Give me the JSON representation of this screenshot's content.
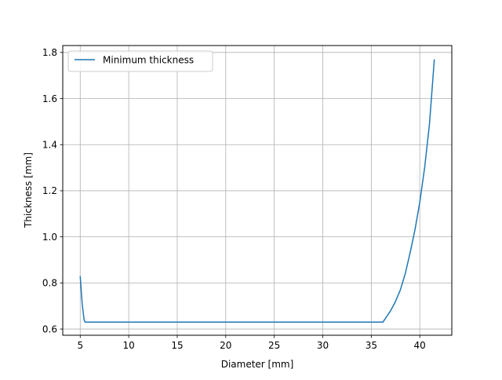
{
  "chart_data": {
    "type": "line",
    "title": "",
    "xlabel": "Diameter [mm]",
    "ylabel": "Thickness [mm]",
    "xlim": [
      3.2,
      43.3
    ],
    "ylim": [
      0.573,
      1.83
    ],
    "xticks": [
      5,
      10,
      15,
      20,
      25,
      30,
      35,
      40
    ],
    "yticks": [
      0.6,
      0.8,
      1.0,
      1.2,
      1.4,
      1.6,
      1.8
    ],
    "ytick_labels": [
      "0.6",
      "0.8",
      "1.0",
      "1.2",
      "1.4",
      "1.6",
      "1.8"
    ],
    "grid": true,
    "legend_position": "top-left",
    "series": [
      {
        "name": "Minimum thickness",
        "color": "#1f77b4",
        "x": [
          5.0,
          5.2,
          5.4,
          5.5,
          10,
          20,
          30,
          36.2,
          37.0,
          37.5,
          38.0,
          38.5,
          39.0,
          39.5,
          40.0,
          40.5,
          41.0,
          41.5
        ],
        "y": [
          0.83,
          0.71,
          0.64,
          0.63,
          0.63,
          0.63,
          0.63,
          0.63,
          0.68,
          0.72,
          0.77,
          0.84,
          0.93,
          1.03,
          1.15,
          1.3,
          1.49,
          1.77
        ]
      }
    ]
  }
}
